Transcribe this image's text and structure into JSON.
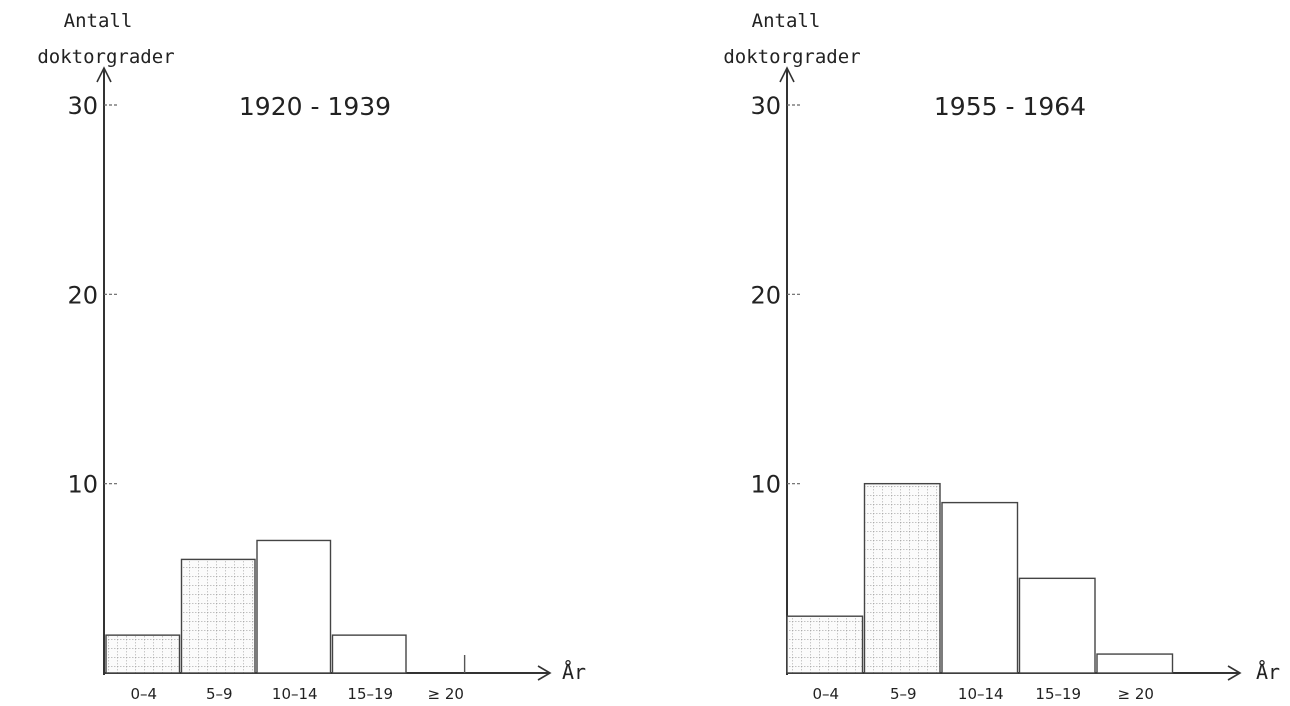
{
  "chart_data": [
    {
      "type": "bar",
      "title": "1920 - 1939",
      "ylabel_line1": "Antall",
      "ylabel_line2": "doktorgrader",
      "xlabel": "År",
      "categories": [
        "0–4",
        "5–9",
        "10–14",
        "15–19",
        "≥ 20"
      ],
      "values": [
        2,
        6,
        7,
        2,
        0
      ],
      "yticks": [
        "10",
        "20",
        "30"
      ],
      "ylim": [
        0,
        30
      ],
      "hatched": [
        true,
        true,
        false,
        false,
        false
      ],
      "grid": false
    },
    {
      "type": "bar",
      "title": "1955 - 1964",
      "ylabel_line1": "Antall",
      "ylabel_line2": "doktorgrader",
      "xlabel": "År",
      "categories": [
        "0–4",
        "5–9",
        "10–14",
        "15–19",
        "≥ 20"
      ],
      "values": [
        3,
        10,
        9,
        5,
        1
      ],
      "yticks": [
        "10",
        "20",
        "30"
      ],
      "ylim": [
        0,
        30
      ],
      "hatched": [
        true,
        true,
        false,
        false,
        false
      ],
      "grid": false
    }
  ]
}
